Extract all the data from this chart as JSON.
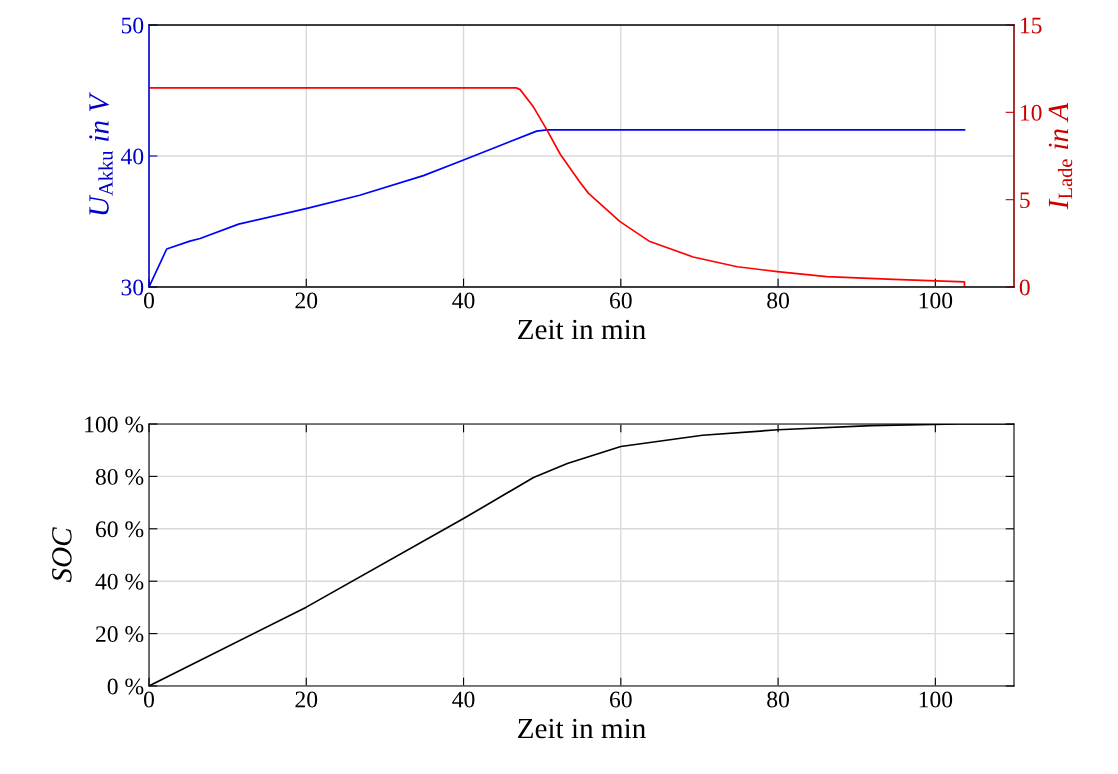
{
  "chart_data": [
    {
      "type": "line",
      "xlabel": "Zeit in min",
      "ylabel": "U$_{Akku}$ in V",
      "y2label": "I$_{Lade}$ in A",
      "xlim": [
        0,
        110
      ],
      "xticks": [
        0,
        20,
        40,
        60,
        80,
        100
      ],
      "ylim": [
        30,
        50
      ],
      "yticks": [
        30,
        40,
        50
      ],
      "y2lim": [
        0,
        15
      ],
      "y2ticks": [
        0,
        5,
        10,
        15
      ],
      "grid": true,
      "legend": false,
      "series": [
        {
          "color": "#0000ff",
          "x": [
            0,
            2.25,
            5.2,
            6.5,
            11.4,
            20.1,
            26.8,
            34.9,
            40,
            49.3,
            50.6,
            103.7
          ],
          "values": [
            30,
            32.9,
            33.5,
            33.7,
            34.8,
            36.0,
            37.0,
            38.5,
            39.7,
            41.9,
            42.0,
            42.0
          ]
        },
        {
          "color": "#ff0000",
          "axis": "y2",
          "x": [
            0,
            46.7,
            47.2,
            48.9,
            50.6,
            52.3,
            54.8,
            55.9,
            59.9,
            63.7,
            69.2,
            74.8,
            79.9,
            86.2,
            94.7,
            103.7,
            103.7
          ],
          "values": [
            11.4,
            11.4,
            11.3,
            10.3,
            9.0,
            7.6,
            6.0,
            5.36,
            3.74,
            2.6,
            1.72,
            1.16,
            0.88,
            0.59,
            0.44,
            0.29,
            0
          ]
        }
      ]
    },
    {
      "type": "line",
      "xlabel": "Zeit in min",
      "ylabel": "SOC",
      "xlim": [
        0,
        110
      ],
      "xticks": [
        0,
        20,
        40,
        60,
        80,
        100
      ],
      "ylim": [
        0,
        100
      ],
      "yticks": [
        {
          "value": 0,
          "label": "0 %"
        },
        {
          "value": 20,
          "label": "20 %"
        },
        {
          "value": 40,
          "label": "40 %"
        },
        {
          "value": 60,
          "label": "60 %"
        },
        {
          "value": 80,
          "label": "80 %"
        },
        {
          "value": 100,
          "label": "100 %"
        }
      ],
      "grid": true,
      "legend": false,
      "series": [
        {
          "color": "#000000",
          "x": [
            0,
            20,
            40,
            48.9,
            53.2,
            60,
            70.4,
            80,
            91.8,
            102.9,
            110
          ],
          "values": [
            0,
            30.1,
            63.9,
            79.6,
            84.9,
            91.4,
            95.7,
            97.8,
            99.4,
            100,
            100
          ]
        }
      ]
    }
  ]
}
